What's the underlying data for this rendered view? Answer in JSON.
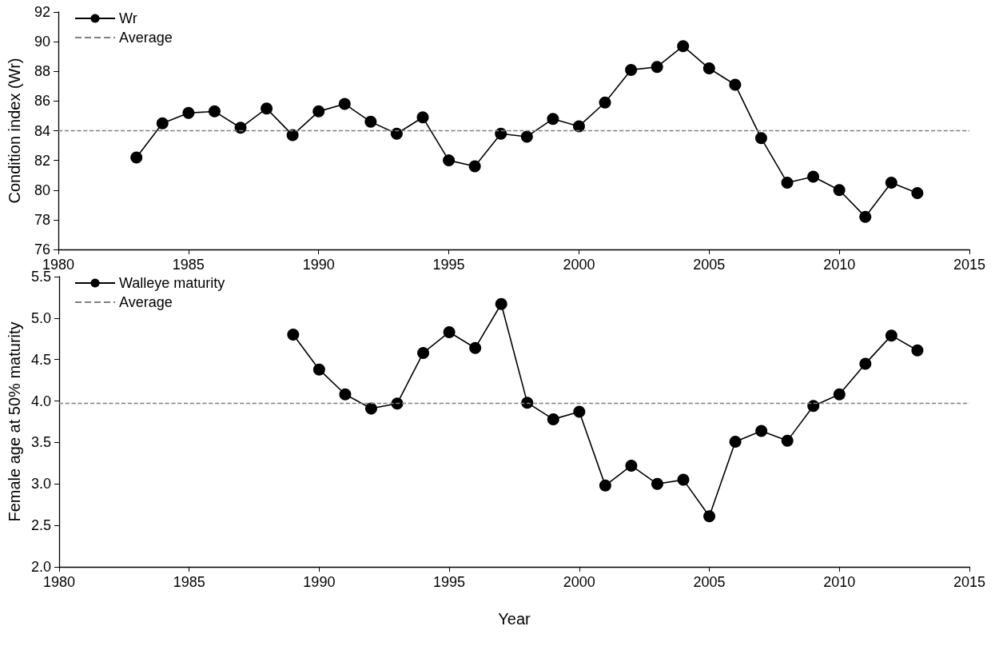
{
  "chart_data": [
    {
      "type": "line",
      "ylabel": "Condition index (Wr)",
      "x": [
        1983,
        1984,
        1985,
        1986,
        1987,
        1988,
        1989,
        1990,
        1991,
        1992,
        1993,
        1994,
        1995,
        1996,
        1997,
        1998,
        1999,
        2000,
        2001,
        2002,
        2003,
        2004,
        2005,
        2006,
        2007,
        2008,
        2009,
        2010,
        2011,
        2012,
        2013
      ],
      "series": [
        {
          "name": "Wr",
          "color": "#000000",
          "values": [
            82.2,
            84.5,
            85.2,
            85.3,
            84.2,
            85.5,
            83.7,
            85.3,
            85.8,
            84.6,
            83.8,
            84.9,
            82.0,
            81.6,
            83.8,
            83.6,
            84.8,
            84.3,
            85.9,
            88.1,
            88.3,
            89.7,
            88.2,
            87.1,
            83.5,
            80.5,
            80.9,
            80.0,
            78.2,
            80.5,
            79.8
          ]
        }
      ],
      "xlim": [
        1980,
        2015
      ],
      "xticks": [
        1980,
        1985,
        1990,
        1995,
        2000,
        2005,
        2010,
        2015
      ],
      "ylim": [
        76,
        92
      ],
      "yticks": [
        76,
        78,
        80,
        82,
        84,
        86,
        88,
        90,
        92
      ],
      "ref_lines": [
        {
          "axis": "y",
          "value": 84.0,
          "label": "Average",
          "color": "#808080",
          "line_style": "dashed"
        }
      ],
      "marker": "circle",
      "line_style": "solid",
      "grid": false,
      "legend": "top left"
    },
    {
      "type": "line",
      "xlabel": "Year",
      "ylabel": "Female age at 50% maturity",
      "x": [
        1989,
        1990,
        1991,
        1992,
        1993,
        1994,
        1995,
        1996,
        1997,
        1998,
        1999,
        2000,
        2001,
        2002,
        2003,
        2004,
        2005,
        2006,
        2007,
        2008,
        2009,
        2010,
        2011,
        2012,
        2013
      ],
      "series": [
        {
          "name": "Walleye maturity",
          "color": "#000000",
          "values": [
            4.8,
            4.38,
            4.08,
            3.91,
            3.97,
            4.58,
            4.83,
            4.64,
            5.17,
            3.98,
            3.78,
            3.87,
            2.98,
            3.22,
            3.0,
            3.05,
            2.61,
            3.51,
            3.64,
            3.52,
            3.94,
            4.08,
            4.45,
            4.79,
            4.61
          ]
        }
      ],
      "xlim": [
        1980,
        2015
      ],
      "xticks": [
        1980,
        1985,
        1990,
        1995,
        2000,
        2005,
        2010,
        2015
      ],
      "ylim": [
        2.0,
        5.5
      ],
      "yticks": [
        {
          "value": 2.0,
          "label": "2.0"
        },
        {
          "value": 2.5,
          "label": "2.5"
        },
        {
          "value": 3.0,
          "label": "3.0"
        },
        {
          "value": 3.5,
          "label": "3.5"
        },
        {
          "value": 4.0,
          "label": "4.0"
        },
        {
          "value": 4.5,
          "label": "4.5"
        },
        {
          "value": 5.0,
          "label": "5.0"
        },
        {
          "value": 5.5,
          "label": "5.5"
        }
      ],
      "ref_lines": [
        {
          "axis": "y",
          "value": 3.97,
          "label": "Average",
          "color": "#808080",
          "line_style": "dashed"
        }
      ],
      "marker": "circle",
      "line_style": "solid",
      "grid": false,
      "legend": "top left"
    }
  ]
}
